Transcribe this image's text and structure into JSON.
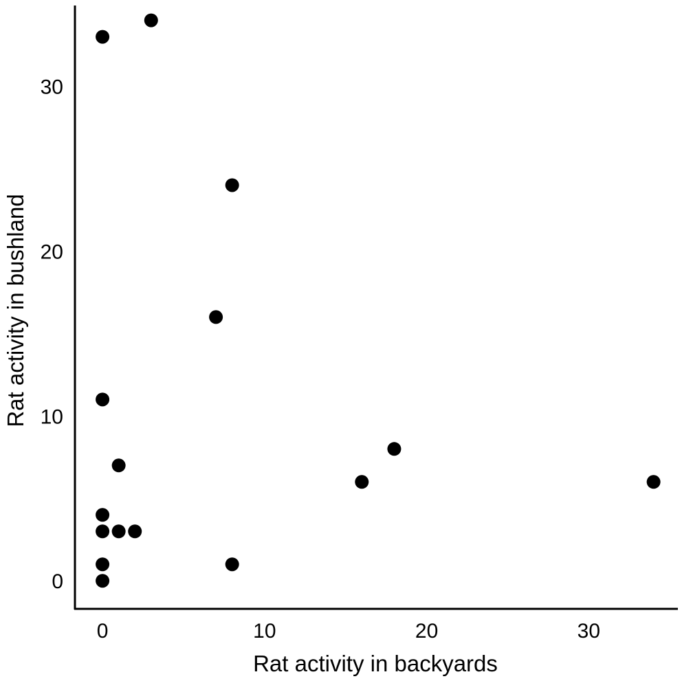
{
  "chart_data": {
    "type": "scatter",
    "title": "",
    "xlabel": "Rat activity in backyards",
    "ylabel": "Rat activity in bushland",
    "xlim": [
      -1.7,
      35.5
    ],
    "ylim": [
      -1.7,
      34.9
    ],
    "xticks": [
      {
        "value": 0,
        "label": "0"
      },
      {
        "value": 10,
        "label": "10"
      },
      {
        "value": 20,
        "label": "20"
      },
      {
        "value": 30,
        "label": "30"
      }
    ],
    "yticks": [
      {
        "value": 0,
        "label": "0"
      },
      {
        "value": 10,
        "label": "10"
      },
      {
        "value": 20,
        "label": "20"
      },
      {
        "value": 30,
        "label": "30"
      }
    ],
    "grid": false,
    "legend": "none",
    "marker_color": "#000000",
    "points": [
      {
        "x": 0,
        "y": 33
      },
      {
        "x": 3,
        "y": 34
      },
      {
        "x": 8,
        "y": 24
      },
      {
        "x": 7,
        "y": 16
      },
      {
        "x": 0,
        "y": 11
      },
      {
        "x": 1,
        "y": 7
      },
      {
        "x": 18,
        "y": 8
      },
      {
        "x": 16,
        "y": 6
      },
      {
        "x": 34,
        "y": 6
      },
      {
        "x": 0,
        "y": 4
      },
      {
        "x": 0,
        "y": 3
      },
      {
        "x": 1,
        "y": 3
      },
      {
        "x": 2,
        "y": 3
      },
      {
        "x": 0,
        "y": 1
      },
      {
        "x": 8,
        "y": 1
      },
      {
        "x": 0,
        "y": 0
      }
    ]
  }
}
